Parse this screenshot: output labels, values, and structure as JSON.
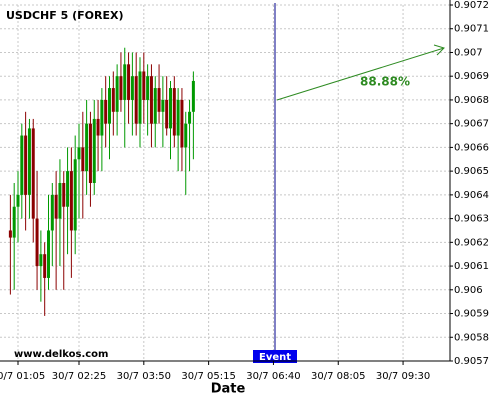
{
  "chart_data": {
    "type": "candlestick",
    "title": "USDCHF 5 (FOREX)",
    "xlabel": "Date",
    "watermark": "www.delkos.com",
    "event_label": "Event",
    "annotation": "88.88%",
    "x": [
      "30/7 00:55",
      "30/7 01:00",
      "30/7 01:05",
      "30/7 01:10",
      "30/7 01:15",
      "30/7 01:20",
      "30/7 01:25",
      "30/7 01:30",
      "30/7 01:35",
      "30/7 01:40",
      "30/7 01:45",
      "30/7 01:50",
      "30/7 01:55",
      "30/7 02:00",
      "30/7 02:05",
      "30/7 02:10",
      "30/7 02:15",
      "30/7 02:20",
      "30/7 02:25",
      "30/7 02:30",
      "30/7 02:35",
      "30/7 02:40",
      "30/7 02:45",
      "30/7 02:50",
      "30/7 02:55",
      "30/7 03:00",
      "30/7 03:05",
      "30/7 03:10",
      "30/7 03:15",
      "30/7 03:20",
      "30/7 03:25",
      "30/7 03:30",
      "30/7 03:35",
      "30/7 03:40",
      "30/7 03:45",
      "30/7 03:50",
      "30/7 03:55",
      "30/7 04:00",
      "30/7 04:05",
      "30/7 04:10",
      "30/7 04:15",
      "30/7 04:20",
      "30/7 04:25",
      "30/7 04:30",
      "30/7 04:35",
      "30/7 04:40",
      "30/7 04:45",
      "30/7 04:50",
      "30/7 04:55"
    ],
    "open": [
      0.90625,
      0.90622,
      0.90635,
      0.9064,
      0.90665,
      0.9064,
      0.90668,
      0.9063,
      0.9061,
      0.90615,
      0.90605,
      0.90625,
      0.9064,
      0.9063,
      0.90645,
      0.90635,
      0.9065,
      0.90625,
      0.90655,
      0.9066,
      0.9065,
      0.9067,
      0.90645,
      0.90672,
      0.90665,
      0.9068,
      0.9067,
      0.90685,
      0.90675,
      0.9069,
      0.9068,
      0.90695,
      0.9068,
      0.9069,
      0.9067,
      0.90692,
      0.9068,
      0.9069,
      0.9067,
      0.90685,
      0.90675,
      0.9068,
      0.90668,
      0.90685,
      0.90665,
      0.9068,
      0.9066,
      0.9067,
      0.90675
    ],
    "high": [
      0.9064,
      0.90645,
      0.9065,
      0.9067,
      0.90675,
      0.90672,
      0.90672,
      0.9065,
      0.90625,
      0.9062,
      0.9064,
      0.90645,
      0.9065,
      0.90655,
      0.9065,
      0.9066,
      0.9066,
      0.90665,
      0.9067,
      0.90675,
      0.9068,
      0.90675,
      0.9068,
      0.9068,
      0.90685,
      0.9069,
      0.9069,
      0.90692,
      0.90695,
      0.907,
      0.90702,
      0.907,
      0.907,
      0.907,
      0.90698,
      0.907,
      0.90695,
      0.90695,
      0.9069,
      0.90695,
      0.9069,
      0.9069,
      0.90688,
      0.9069,
      0.90685,
      0.90685,
      0.90675,
      0.9068,
      0.90692
    ],
    "low": [
      0.90598,
      0.906,
      0.9062,
      0.9063,
      0.90625,
      0.9063,
      0.9062,
      0.906,
      0.90595,
      0.90589,
      0.906,
      0.9061,
      0.906,
      0.9061,
      0.906,
      0.90615,
      0.90605,
      0.90615,
      0.9063,
      0.9063,
      0.9064,
      0.90635,
      0.9064,
      0.9065,
      0.9065,
      0.9066,
      0.90655,
      0.90665,
      0.90665,
      0.90675,
      0.9066,
      0.9067,
      0.90665,
      0.90665,
      0.9066,
      0.9067,
      0.90665,
      0.9066,
      0.9066,
      0.9067,
      0.9066,
      0.90665,
      0.90655,
      0.9066,
      0.9065,
      0.9065,
      0.9064,
      0.9065,
      0.90655
    ],
    "close": [
      0.90622,
      0.90635,
      0.9064,
      0.90665,
      0.9064,
      0.90668,
      0.9063,
      0.9061,
      0.90615,
      0.90605,
      0.90625,
      0.9064,
      0.9063,
      0.90645,
      0.90635,
      0.9065,
      0.90625,
      0.90655,
      0.9066,
      0.9065,
      0.9067,
      0.90645,
      0.90672,
      0.90665,
      0.9068,
      0.9067,
      0.90685,
      0.90675,
      0.9069,
      0.9068,
      0.90695,
      0.9068,
      0.9069,
      0.9067,
      0.90692,
      0.9068,
      0.9069,
      0.9067,
      0.90685,
      0.90675,
      0.9068,
      0.90668,
      0.90685,
      0.90665,
      0.9068,
      0.9066,
      0.9067,
      0.90675,
      0.90688
    ],
    "up_color": "#009900",
    "down_color": "#8b0000",
    "ylim": [
      0.9057,
      0.9072
    ],
    "yticks": [
      0.9057,
      0.9058,
      0.9059,
      0.906,
      0.9061,
      0.9062,
      0.9063,
      0.9064,
      0.9065,
      0.9066,
      0.9067,
      0.9068,
      0.9069,
      0.907,
      0.9071,
      0.9072
    ],
    "xticks": [
      "30/7 01:05",
      "30/7 02:25",
      "30/7 03:50",
      "30/7 05:15",
      "30/7 06:40",
      "30/7 08:05",
      "30/7 09:30"
    ],
    "grid": true
  }
}
